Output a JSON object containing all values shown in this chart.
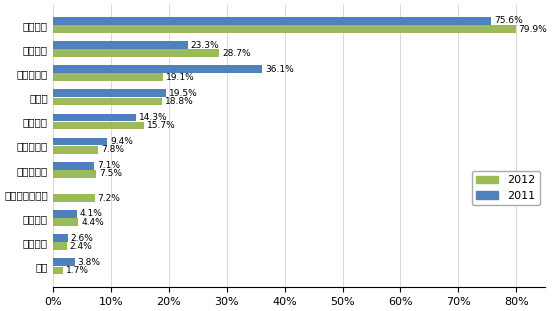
{
  "categories": [
    "产品质量",
    "供货能力",
    "产品性价比",
    "交货期",
    "技术支持",
    "技术领先性",
    "品牌知名度",
    "小批量供应服务",
    "产品组合",
    "付款条件",
    "信誉"
  ],
  "values_2012": [
    79.9,
    28.7,
    19.1,
    18.8,
    15.7,
    7.8,
    7.5,
    7.2,
    4.4,
    2.4,
    1.7
  ],
  "values_2011": [
    75.6,
    23.3,
    36.1,
    19.5,
    14.3,
    9.4,
    7.1,
    null,
    4.1,
    2.6,
    3.8
  ],
  "labels_2012": [
    "79.9%",
    "28.7%",
    "19.1%",
    "18.8%",
    "15.7%",
    "7.8%",
    "7.5%",
    "7.2%",
    "4.4%",
    "2.4%",
    "1.7%"
  ],
  "labels_2011": [
    "75.6%",
    "23.3%",
    "36.1%",
    "19.5%",
    "14.3%",
    "9.4%",
    "7.1%",
    "",
    "4.1%",
    "2.6%",
    "3.8%"
  ],
  "color_2012": "#9bbb59",
  "color_2011": "#4f81bd",
  "bar_height": 0.32,
  "xlim": [
    0,
    85
  ],
  "xtick_vals": [
    0,
    10,
    20,
    30,
    40,
    50,
    60,
    70,
    80
  ],
  "xtick_labels": [
    "0%",
    "10%",
    "20%",
    "30%",
    "40%",
    "50%",
    "60%",
    "70%",
    "80%"
  ],
  "legend_2012": "2012",
  "legend_2011": "2011",
  "figsize": [
    5.55,
    3.11
  ],
  "dpi": 100
}
